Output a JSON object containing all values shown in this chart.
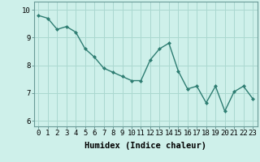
{
  "x": [
    0,
    1,
    2,
    3,
    4,
    5,
    6,
    7,
    8,
    9,
    10,
    11,
    12,
    13,
    14,
    15,
    16,
    17,
    18,
    19,
    20,
    21,
    22,
    23
  ],
  "y": [
    9.8,
    9.7,
    9.3,
    9.4,
    9.2,
    8.6,
    8.3,
    7.9,
    7.75,
    7.6,
    7.45,
    7.45,
    8.2,
    8.6,
    8.8,
    7.8,
    7.15,
    7.25,
    6.65,
    7.25,
    6.35,
    7.05,
    7.25,
    6.8
  ],
  "line_color": "#2e7d72",
  "marker": "D",
  "marker_size": 2.0,
  "bg_color": "#cef0ea",
  "grid_color": "#aad8d0",
  "xlabel": "Humidex (Indice chaleur)",
  "ylim": [
    5.8,
    10.3
  ],
  "xlim": [
    -0.5,
    23.5
  ],
  "yticks": [
    6,
    7,
    8,
    9,
    10
  ],
  "xticks": [
    0,
    1,
    2,
    3,
    4,
    5,
    6,
    7,
    8,
    9,
    10,
    11,
    12,
    13,
    14,
    15,
    16,
    17,
    18,
    19,
    20,
    21,
    22,
    23
  ],
  "xlabel_fontsize": 7.5,
  "tick_fontsize": 6.5,
  "linewidth": 1.0,
  "spine_color": "#6a9a97"
}
